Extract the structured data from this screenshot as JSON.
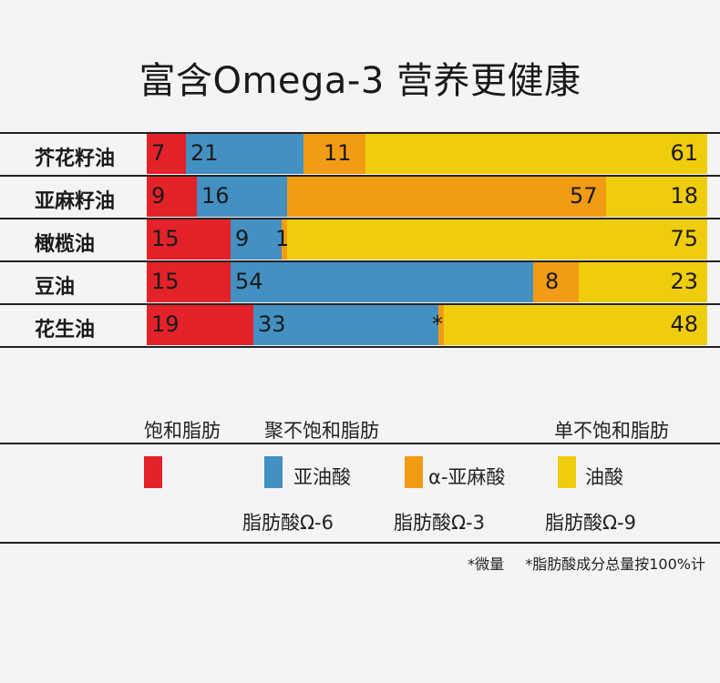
{
  "title": "富含Omega-3 营养更健康",
  "chart_data": {
    "type": "bar",
    "orientation": "horizontal",
    "stacked": true,
    "normalized_to": 100,
    "title": "富含Omega-3 营养更健康",
    "categories": [
      "芥花籽油",
      "亚麻籽油",
      "橄榄油",
      "豆油",
      "花生油"
    ],
    "series": [
      {
        "name": "饱和脂肪",
        "color": "#e3222a",
        "values": [
          7,
          9,
          15,
          15,
          19
        ],
        "labels": [
          "7",
          "9",
          "15",
          "15",
          "19"
        ]
      },
      {
        "name": "亚油酸",
        "color": "#4390c2",
        "values": [
          21,
          16,
          9,
          54,
          33
        ],
        "labels": [
          "21",
          "16",
          "9",
          "54",
          "33"
        ]
      },
      {
        "name": "α-亚麻酸",
        "color": "#f29b15",
        "values": [
          11,
          57,
          1,
          8,
          1
        ],
        "labels": [
          "11",
          "57",
          "1",
          "8",
          "*"
        ]
      },
      {
        "name": "油酸",
        "color": "#f0cd0c",
        "values": [
          61,
          18,
          75,
          23,
          48
        ],
        "labels": [
          "61",
          "18",
          "75",
          "23",
          "48"
        ]
      }
    ]
  },
  "legend": {
    "headers": {
      "saturated": "饱和脂肪",
      "poly": "聚不饱和脂肪",
      "mono": "单不饱和脂肪"
    },
    "items": [
      {
        "label": "",
        "color": "#e3222a"
      },
      {
        "label": "亚油酸",
        "color": "#4390c2"
      },
      {
        "label": "α-亚麻酸",
        "color": "#f29b15"
      },
      {
        "label": "油酸",
        "color": "#f0cd0c"
      }
    ],
    "fatty_acids": [
      "脂肪酸Ω-6",
      "脂肪酸Ω-3",
      "脂肪酸Ω-9"
    ]
  },
  "footnotes": {
    "trace": "*微量",
    "basis": "*脂肪酸成分总量按100%计"
  }
}
